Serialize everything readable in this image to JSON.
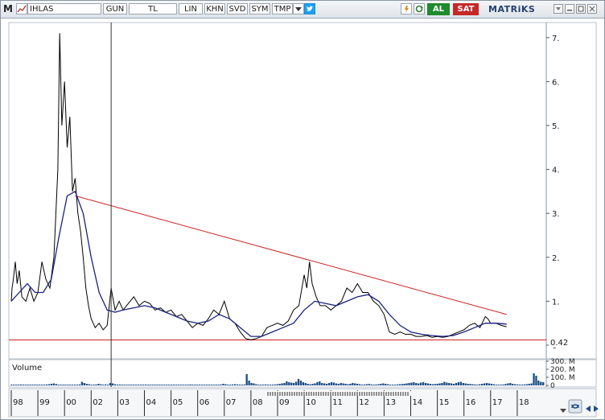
{
  "toolbar": {
    "logo_letter": "M",
    "symbol": "IHLAS",
    "period": "GUN",
    "currency": "TL",
    "scale": "LIN",
    "buttons": [
      "KHN",
      "SVD",
      "SYM",
      "TMP"
    ],
    "buy_label": "AL",
    "sell_label": "SAT",
    "brand": "MATRiKS"
  },
  "colors": {
    "price": "#000000",
    "moving_average": "#1a237e",
    "trendline": "#cc2222",
    "support": "#cc2222",
    "volume": "#1f4f86",
    "buy": "#1f8a2e",
    "sell": "#c62828",
    "brand": "#24406c"
  },
  "icons": {
    "logo": "m-logo-icon",
    "symbol": "symbol-chart-icon",
    "dropdown": "chevron-down-icon",
    "twitter": "twitter-icon",
    "refresh": "refresh-icon",
    "settings": "gear-icon",
    "rotate": "rotate-icon",
    "minimize": "minimize-icon",
    "maximize": "maximize-icon",
    "close": "close-icon",
    "scroll_left": "arrow-left-icon",
    "scroll_right": "arrow-right-icon",
    "dropdown_small": "chevron-down-small-icon",
    "zoom": "zoom-icon"
  },
  "chart_data": {
    "type": "line",
    "x_labels": [
      "98",
      "99",
      "00",
      "02",
      "03",
      "04",
      "05",
      "06",
      "07",
      "08",
      "09",
      "10",
      "11",
      "12",
      "13",
      "14",
      "15",
      "16",
      "17",
      "18"
    ],
    "y_ticks": [
      "7.",
      "6.",
      "5.",
      "4.",
      "3.",
      "2.",
      "1.",
      "0"
    ],
    "y_tick_values": [
      7,
      6,
      5,
      4,
      3,
      2,
      1,
      0
    ],
    "last_value_label": "0.42",
    "last_value": 0.42,
    "price_points": [
      [
        0,
        1.0
      ],
      [
        0.03,
        1.3
      ],
      [
        0.08,
        1.5
      ],
      [
        0.15,
        1.9
      ],
      [
        0.22,
        1.4
      ],
      [
        0.3,
        1.7
      ],
      [
        0.4,
        1.1
      ],
      [
        0.55,
        1.0
      ],
      [
        0.7,
        1.3
      ],
      [
        0.85,
        1.0
      ],
      [
        1.0,
        1.2
      ],
      [
        1.15,
        1.9
      ],
      [
        1.3,
        1.5
      ],
      [
        1.45,
        1.3
      ],
      [
        1.6,
        2.0
      ],
      [
        1.75,
        4.0
      ],
      [
        1.82,
        7.1
      ],
      [
        1.9,
        5.0
      ],
      [
        2.0,
        6.0
      ],
      [
        2.1,
        4.5
      ],
      [
        2.2,
        5.2
      ],
      [
        2.3,
        3.5
      ],
      [
        2.4,
        3.8
      ],
      [
        2.5,
        3.0
      ],
      [
        2.6,
        2.6
      ],
      [
        2.7,
        2.0
      ],
      [
        2.8,
        1.3
      ],
      [
        2.9,
        0.9
      ],
      [
        3.0,
        0.6
      ],
      [
        3.15,
        0.4
      ],
      [
        3.3,
        0.5
      ],
      [
        3.45,
        0.35
      ],
      [
        3.6,
        0.45
      ],
      [
        3.75,
        1.3
      ],
      [
        3.9,
        0.8
      ],
      [
        4.05,
        1.0
      ],
      [
        4.2,
        0.8
      ],
      [
        4.4,
        0.95
      ],
      [
        4.6,
        1.1
      ],
      [
        4.8,
        0.9
      ],
      [
        5.0,
        1.0
      ],
      [
        5.2,
        0.95
      ],
      [
        5.4,
        0.8
      ],
      [
        5.6,
        0.85
      ],
      [
        5.8,
        0.75
      ],
      [
        6.0,
        0.8
      ],
      [
        6.2,
        0.65
      ],
      [
        6.4,
        0.7
      ],
      [
        6.6,
        0.55
      ],
      [
        6.8,
        0.4
      ],
      [
        7.0,
        0.5
      ],
      [
        7.2,
        0.45
      ],
      [
        7.4,
        0.6
      ],
      [
        7.6,
        0.8
      ],
      [
        7.8,
        0.7
      ],
      [
        8.0,
        1.0
      ],
      [
        8.2,
        0.6
      ],
      [
        8.4,
        0.5
      ],
      [
        8.6,
        0.3
      ],
      [
        8.8,
        0.15
      ],
      [
        9.0,
        0.12
      ],
      [
        9.2,
        0.15
      ],
      [
        9.4,
        0.2
      ],
      [
        9.6,
        0.4
      ],
      [
        9.8,
        0.45
      ],
      [
        10.0,
        0.5
      ],
      [
        10.2,
        0.45
      ],
      [
        10.4,
        0.55
      ],
      [
        10.6,
        0.8
      ],
      [
        10.8,
        0.9
      ],
      [
        11.0,
        1.6
      ],
      [
        11.1,
        1.3
      ],
      [
        11.2,
        1.9
      ],
      [
        11.3,
        1.4
      ],
      [
        11.45,
        1.1
      ],
      [
        11.6,
        0.9
      ],
      [
        11.8,
        0.9
      ],
      [
        12.0,
        0.8
      ],
      [
        12.2,
        0.9
      ],
      [
        12.4,
        1.0
      ],
      [
        12.6,
        1.3
      ],
      [
        12.8,
        1.2
      ],
      [
        13.0,
        1.4
      ],
      [
        13.2,
        1.2
      ],
      [
        13.4,
        1.2
      ],
      [
        13.6,
        1.0
      ],
      [
        13.8,
        0.9
      ],
      [
        14.0,
        0.7
      ],
      [
        14.2,
        0.3
      ],
      [
        14.4,
        0.25
      ],
      [
        14.6,
        0.3
      ],
      [
        14.8,
        0.25
      ],
      [
        15.0,
        0.25
      ],
      [
        15.2,
        0.2
      ],
      [
        15.4,
        0.2
      ],
      [
        15.6,
        0.22
      ],
      [
        15.8,
        0.18
      ],
      [
        16.0,
        0.2
      ],
      [
        16.2,
        0.18
      ],
      [
        16.4,
        0.2
      ],
      [
        16.6,
        0.25
      ],
      [
        16.8,
        0.3
      ],
      [
        17.0,
        0.35
      ],
      [
        17.2,
        0.45
      ],
      [
        17.4,
        0.5
      ],
      [
        17.6,
        0.4
      ],
      [
        17.8,
        0.65
      ],
      [
        17.9,
        0.6
      ],
      [
        18.0,
        0.5
      ],
      [
        18.2,
        0.5
      ],
      [
        18.4,
        0.45
      ],
      [
        18.6,
        0.42
      ]
    ],
    "moving_average_points": [
      [
        0,
        1.0
      ],
      [
        0.3,
        1.2
      ],
      [
        0.6,
        1.4
      ],
      [
        0.9,
        1.2
      ],
      [
        1.2,
        1.2
      ],
      [
        1.5,
        1.5
      ],
      [
        1.8,
        2.5
      ],
      [
        2.1,
        3.4
      ],
      [
        2.4,
        3.5
      ],
      [
        2.7,
        3.0
      ],
      [
        3.0,
        2.0
      ],
      [
        3.3,
        1.2
      ],
      [
        3.6,
        0.8
      ],
      [
        3.9,
        0.75
      ],
      [
        4.2,
        0.8
      ],
      [
        4.6,
        0.85
      ],
      [
        5.0,
        0.9
      ],
      [
        5.4,
        0.85
      ],
      [
        5.8,
        0.75
      ],
      [
        6.2,
        0.65
      ],
      [
        6.6,
        0.55
      ],
      [
        7.0,
        0.5
      ],
      [
        7.4,
        0.55
      ],
      [
        7.8,
        0.7
      ],
      [
        8.2,
        0.6
      ],
      [
        8.6,
        0.4
      ],
      [
        9.0,
        0.2
      ],
      [
        9.4,
        0.2
      ],
      [
        9.8,
        0.3
      ],
      [
        10.2,
        0.4
      ],
      [
        10.6,
        0.5
      ],
      [
        11.0,
        0.8
      ],
      [
        11.4,
        1.0
      ],
      [
        11.8,
        0.95
      ],
      [
        12.2,
        0.9
      ],
      [
        12.6,
        1.0
      ],
      [
        13.0,
        1.1
      ],
      [
        13.4,
        1.15
      ],
      [
        13.8,
        1.0
      ],
      [
        14.2,
        0.7
      ],
      [
        14.6,
        0.45
      ],
      [
        15.0,
        0.3
      ],
      [
        15.4,
        0.25
      ],
      [
        15.8,
        0.22
      ],
      [
        16.2,
        0.2
      ],
      [
        16.6,
        0.22
      ],
      [
        17.0,
        0.3
      ],
      [
        17.4,
        0.4
      ],
      [
        17.8,
        0.5
      ],
      [
        18.2,
        0.5
      ],
      [
        18.6,
        0.48
      ]
    ],
    "trendline": [
      [
        2.4,
        3.4
      ],
      [
        18.6,
        0.7
      ]
    ],
    "support_level": 0.12,
    "cursor_x": 3.75,
    "volume": {
      "title": "Volume",
      "ticks": [
        "300. M",
        "200. M",
        "100. M",
        "0"
      ],
      "tick_values": [
        300,
        200,
        100,
        0
      ],
      "bars": [
        10,
        5,
        8,
        6,
        12,
        8,
        5,
        6,
        10,
        7,
        5,
        4,
        6,
        8,
        9,
        12,
        15,
        20,
        25,
        18,
        10,
        8,
        5,
        6,
        4,
        5,
        8,
        7,
        9,
        12,
        45,
        30,
        20,
        15,
        10,
        8,
        12,
        20,
        15,
        10,
        12,
        8,
        30,
        25,
        15,
        10,
        12,
        8,
        6,
        5,
        10,
        8,
        6,
        5,
        7,
        6,
        5,
        6,
        5,
        4,
        5,
        6,
        8,
        5,
        6,
        5,
        6,
        7,
        8,
        6,
        5,
        4,
        5,
        6,
        8,
        10,
        12,
        9,
        7,
        6,
        5,
        4,
        5,
        6,
        5,
        4,
        6,
        8,
        10,
        12,
        20,
        15,
        10,
        8,
        12,
        15,
        12,
        10,
        8,
        12,
        140,
        60,
        30,
        25,
        15,
        10,
        10,
        8,
        12,
        10,
        8,
        10,
        12,
        15,
        20,
        25,
        30,
        50,
        40,
        35,
        30,
        45,
        80,
        60,
        40,
        30,
        20,
        15,
        20,
        25,
        40,
        50,
        30,
        25,
        20,
        30,
        40,
        35,
        25,
        20,
        30,
        25,
        20,
        15,
        20,
        30,
        25,
        20,
        15,
        10,
        12,
        15,
        18,
        12,
        10,
        12,
        15,
        20,
        25,
        20,
        15,
        10,
        8,
        10,
        12,
        15,
        18,
        20,
        25,
        30,
        35,
        40,
        30,
        25,
        35,
        40,
        30,
        25,
        20,
        15,
        18,
        20,
        25,
        30,
        45,
        35,
        30,
        25,
        20,
        30,
        40,
        45,
        30,
        25,
        20,
        18,
        15,
        12,
        10,
        15,
        20,
        25,
        30,
        25,
        20,
        15,
        10,
        8,
        10,
        12,
        18,
        25,
        30,
        20,
        15,
        12,
        10,
        8,
        12,
        15,
        20,
        25,
        150,
        120,
        60,
        45,
        40
      ]
    }
  }
}
